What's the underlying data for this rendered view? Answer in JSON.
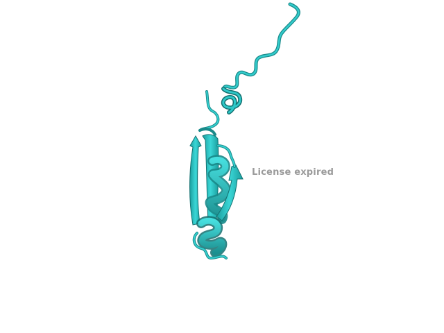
{
  "viewer": {
    "watermark_text": "License expired",
    "model_icon": "protein-cartoon-model",
    "colors": {
      "background": "#ffffff",
      "ribbon": "#2ec8c8",
      "ribbon_dark": "#1a8a8a",
      "ribbon_shadow": "#137070",
      "watermark": "#9a9a9a"
    }
  }
}
